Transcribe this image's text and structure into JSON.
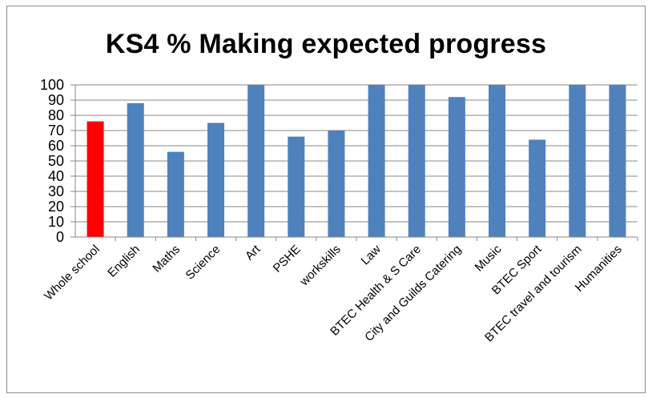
{
  "chart_data": {
    "type": "bar",
    "title": "KS4 % Making expected progress",
    "xlabel": "",
    "ylabel": "",
    "ylim": [
      0,
      100
    ],
    "yticks": [
      0,
      10,
      20,
      30,
      40,
      50,
      60,
      70,
      80,
      90,
      100
    ],
    "grid": true,
    "legend": "none",
    "categories": [
      "Whole school",
      "English",
      "Maths",
      "Science",
      "Art",
      "PSHE",
      "workskills",
      "Law",
      "BTEC  Health & S Care",
      "City and Guilds Catering",
      "Music",
      "BTEC Sport",
      "BTEC travel and tourism",
      "Humanities"
    ],
    "values": [
      76,
      88,
      56,
      75,
      100,
      66,
      70,
      100,
      100,
      92,
      100,
      64,
      100,
      100
    ],
    "colors": {
      "highlight": "#ff0000",
      "bar": "#4f81bd",
      "grid": "#878787",
      "axis": "#878787"
    },
    "highlight_index": 0
  }
}
